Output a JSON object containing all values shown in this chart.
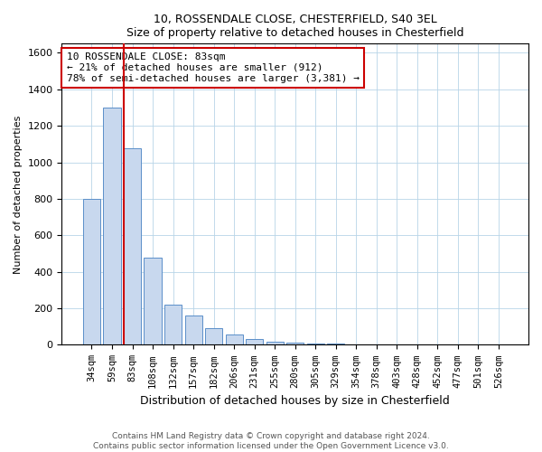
{
  "title1": "10, ROSSENDALE CLOSE, CHESTERFIELD, S40 3EL",
  "title2": "Size of property relative to detached houses in Chesterfield",
  "xlabel": "Distribution of detached houses by size in Chesterfield",
  "ylabel": "Number of detached properties",
  "footer1": "Contains HM Land Registry data © Crown copyright and database right 2024.",
  "footer2": "Contains public sector information licensed under the Open Government Licence v3.0.",
  "categories": [
    "34sqm",
    "59sqm",
    "83sqm",
    "108sqm",
    "132sqm",
    "157sqm",
    "182sqm",
    "206sqm",
    "231sqm",
    "255sqm",
    "280sqm",
    "305sqm",
    "329sqm",
    "354sqm",
    "378sqm",
    "403sqm",
    "428sqm",
    "452sqm",
    "477sqm",
    "501sqm",
    "526sqm"
  ],
  "values": [
    800,
    1300,
    1075,
    480,
    220,
    160,
    90,
    55,
    30,
    18,
    12,
    8,
    5,
    4,
    3,
    2,
    2,
    1,
    1,
    1,
    1
  ],
  "bar_color": "#c8d8ee",
  "bar_edge_color": "#5b8fc9",
  "property_bar_index": 2,
  "annotation_line_color": "#cc0000",
  "annotation_box_color": "#cc0000",
  "annotation_line1": "10 ROSSENDALE CLOSE: 83sqm",
  "annotation_line2": "← 21% of detached houses are smaller (912)",
  "annotation_line3": "78% of semi-detached houses are larger (3,381) →",
  "ylim": [
    0,
    1650
  ],
  "yticks": [
    0,
    200,
    400,
    600,
    800,
    1000,
    1200,
    1400,
    1600
  ]
}
